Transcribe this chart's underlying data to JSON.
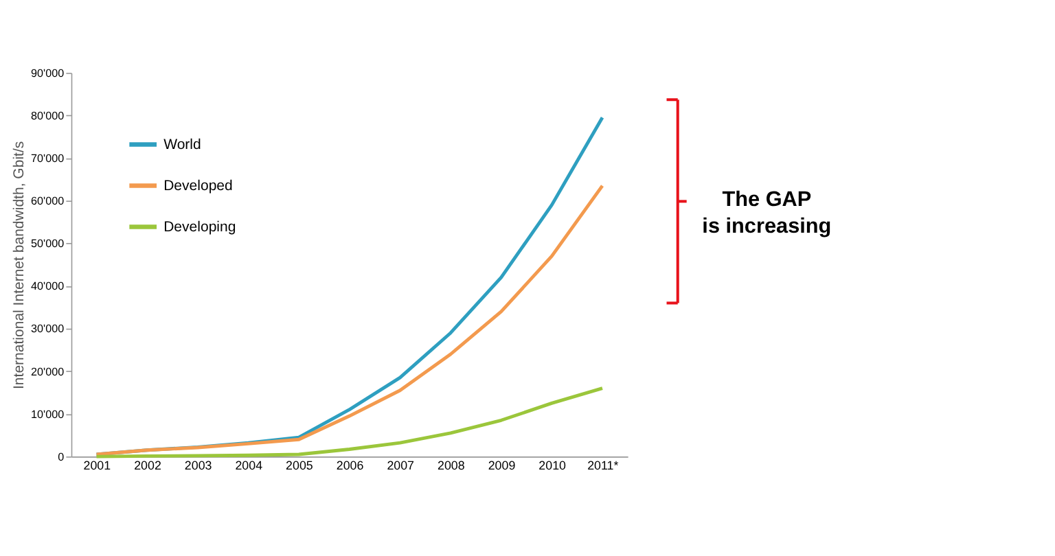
{
  "chart_data": {
    "type": "line",
    "ylabel": "International Internet bandwidth, Gbit/s",
    "categories": [
      "2001",
      "2002",
      "2003",
      "2004",
      "2005",
      "2006",
      "2007",
      "2008",
      "2009",
      "2010",
      "2011*"
    ],
    "series": [
      {
        "name": "World",
        "color": "#2e9fc0",
        "values": [
          500,
          1500,
          2200,
          3200,
          4500,
          11000,
          18500,
          29000,
          42000,
          59000,
          79500
        ]
      },
      {
        "name": "Developed",
        "color": "#f39a4e",
        "values": [
          500,
          1500,
          2100,
          3000,
          4000,
          9500,
          15500,
          24000,
          34000,
          47000,
          63500
        ]
      },
      {
        "name": "Developing",
        "color": "#9bc63b",
        "values": [
          0,
          100,
          200,
          300,
          500,
          1700,
          3200,
          5500,
          8500,
          12500,
          16000
        ]
      }
    ],
    "ylim": [
      0,
      90000
    ],
    "yticks": [
      0,
      {
        "value": 10000,
        "label": "10'000"
      },
      {
        "value": 20000,
        "label": "20'000"
      },
      {
        "value": 30000,
        "label": "30'000"
      },
      {
        "value": 40000,
        "label": "40'000"
      },
      {
        "value": 50000,
        "label": "50'000"
      },
      {
        "value": 60000,
        "label": "60'000"
      },
      {
        "value": 70000,
        "label": "70'000"
      },
      {
        "value": 80000,
        "label": "80'000"
      },
      {
        "value": 90000,
        "label": "90'000"
      }
    ],
    "grid": false,
    "legend": "top left",
    "marker": "none",
    "line_style": "solid",
    "annotations": [
      "The GAP is increasing"
    ]
  }
}
